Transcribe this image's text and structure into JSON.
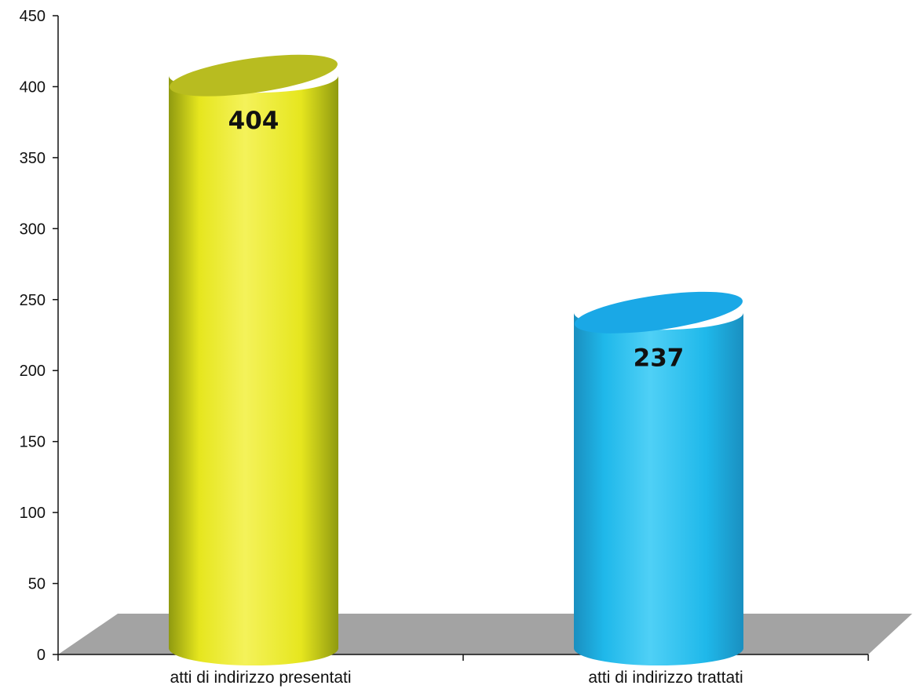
{
  "chart_data": {
    "type": "bar",
    "style": "3d-cylinder",
    "categories": [
      "atti di indirizzo presentati",
      "atti di indirizzo trattati"
    ],
    "values": [
      404,
      237
    ],
    "data_labels": [
      "404",
      "237"
    ],
    "ylim": [
      0,
      450
    ],
    "yticks": [
      0,
      50,
      100,
      150,
      200,
      250,
      300,
      350,
      400,
      450
    ],
    "ytick_labels": [
      "0",
      "50",
      "100",
      "150",
      "200",
      "250",
      "300",
      "350",
      "400",
      "450"
    ],
    "title": "",
    "xlabel": "",
    "ylabel": "",
    "grid": false,
    "legend": "none",
    "colors": {
      "bars": [
        "#e6e61e",
        "#1fb8ea"
      ],
      "bars_dark": [
        "#8f9a10",
        "#1a8fc0"
      ],
      "bars_light": [
        "#f4f25a",
        "#4fd0f6"
      ],
      "bars_top": [
        "#b8bc20",
        "#1aa8e6"
      ],
      "floor": "#a3a3a3",
      "axis": "#111111"
    }
  }
}
